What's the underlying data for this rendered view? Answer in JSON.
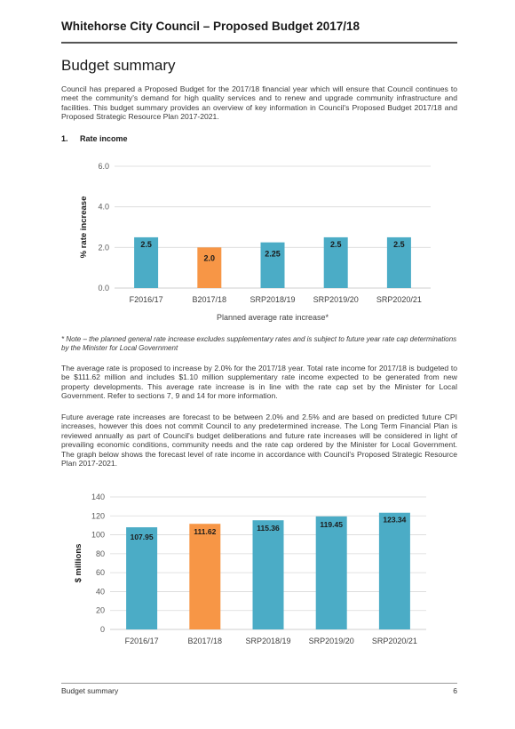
{
  "header": {
    "title": "Whitehorse City Council – Proposed Budget 2017/18"
  },
  "section_title": "Budget summary",
  "intro": "Council has prepared a Proposed Budget for the 2017/18 financial year which will ensure that Council continues to meet the community's demand for high quality services and to renew and upgrade community infrastructure and facilities. This budget summary provides an overview of key information in Council's Proposed Budget 2017/18 and Proposed Strategic Resource Plan 2017-2021.",
  "subsection": {
    "number": "1.",
    "title": "Rate income"
  },
  "note": "* Note – the planned general rate increase excludes supplementary rates and is subject to future year rate cap determinations by the Minister for Local Government",
  "paragraph2": "The average rate is proposed to increase by 2.0% for the 2017/18 year. Total rate income for 2017/18 is budgeted to be $111.62 million and includes $1.10 million supplementary rate income expected to be generated from new property developments. This average rate increase is in line with the rate cap set by the Minister for Local Government. Refer to sections 7, 9 and 14 for more information.",
  "paragraph3": "Future average rate increases are forecast to be between 2.0% and 2.5% and are based on predicted future CPI increases, however this does not commit Council to any predetermined increase. The Long Term Financial Plan is reviewed annually as part of Council's budget deliberations and future rate increases will be considered in light of prevailing economic conditions, community needs and the rate cap ordered by the Minister for Local Government. The graph below shows the forecast level of rate income in accordance with Council's Proposed Strategic Resource Plan 2017-2021.",
  "footer": {
    "left": "Budget summary",
    "page": "6"
  },
  "colors": {
    "teal": "#4BACC6",
    "orange": "#F79646",
    "grid": "#D9D9D9"
  },
  "chart_data": [
    {
      "type": "bar",
      "categories": [
        "F2016/17",
        "B2017/18",
        "SRP2018/19",
        "SRP2019/20",
        "SRP2020/21"
      ],
      "values": [
        2.5,
        2.0,
        2.25,
        2.5,
        2.5
      ],
      "data_labels": [
        "2.5",
        "2.0",
        "2.25",
        "2.5",
        "2.5"
      ],
      "highlight_index": 1,
      "ylabel": "% rate increase",
      "xlabel": "Planned average rate increase*",
      "ylim": [
        0,
        6
      ],
      "yticks": [
        "0.0",
        "2.0",
        "4.0",
        "6.0"
      ],
      "grid": true,
      "legend": "none"
    },
    {
      "type": "bar",
      "categories": [
        "F2016/17",
        "B2017/18",
        "SRP2018/19",
        "SRP2019/20",
        "SRP2020/21"
      ],
      "values": [
        107.95,
        111.62,
        115.36,
        119.45,
        123.34
      ],
      "data_labels": [
        "107.95",
        "111.62",
        "115.36",
        "119.45",
        "123.34"
      ],
      "highlight_index": 1,
      "ylabel": "$ millions",
      "xlabel": "",
      "ylim": [
        0,
        140
      ],
      "yticks": [
        "0",
        "20",
        "40",
        "60",
        "80",
        "100",
        "120",
        "140"
      ],
      "grid": true,
      "legend": "none"
    }
  ]
}
